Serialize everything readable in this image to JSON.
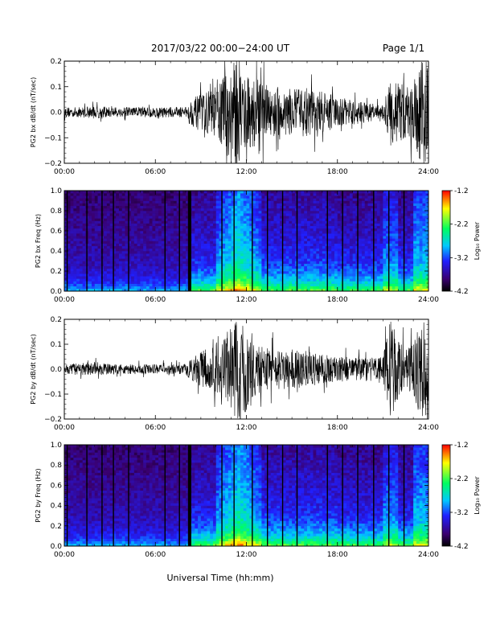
{
  "header": {
    "title": "2017/03/22  00:00−24:00 UT",
    "page": "Page 1/1"
  },
  "footer": {
    "xlabel": "Universal Time (hh:mm)"
  },
  "colors": {
    "trace": "#000000",
    "colormap": [
      "#000000",
      "#3a0070",
      "#2020ff",
      "#00c8ff",
      "#00ff60",
      "#ffff00",
      "#ff0000"
    ]
  },
  "chart_data": [
    {
      "type": "line",
      "ylabel": "PG2 bx dB/dt (nT/sec)",
      "xlim": [
        0,
        24
      ],
      "ylim": [
        -0.2,
        0.2
      ],
      "xticks": [
        "00:00",
        "06:00",
        "12:00",
        "18:00",
        "24:00"
      ],
      "yticks": [
        "0.2",
        "0.1",
        "0.0",
        "−0.1",
        "−0.2"
      ],
      "envelope": {
        "x": [
          0,
          1,
          2,
          3,
          4,
          5,
          6,
          7,
          8,
          8.25,
          9,
          10,
          10.5,
          11,
          11.5,
          12,
          13,
          14,
          15,
          16,
          17,
          18,
          19,
          20,
          20.5,
          21,
          21.5,
          22,
          22.5,
          23,
          23.5,
          24
        ],
        "amplitude": [
          0.02,
          0.02,
          0.025,
          0.02,
          0.02,
          0.02,
          0.02,
          0.02,
          0.02,
          0.05,
          0.07,
          0.1,
          0.15,
          0.2,
          0.2,
          0.15,
          0.12,
          0.1,
          0.09,
          0.1,
          0.08,
          0.06,
          0.05,
          0.04,
          0.03,
          0.03,
          0.12,
          0.15,
          0.1,
          0.12,
          0.2,
          0.2
        ]
      }
    },
    {
      "type": "heatmap",
      "ylabel": "PG2 bx Freq (Hz)",
      "xlim": [
        0,
        24
      ],
      "ylim": [
        0,
        1
      ],
      "xticks": [
        "00:00",
        "06:00",
        "12:00",
        "18:00",
        "24:00"
      ],
      "yticks": [
        "1.0",
        "0.8",
        "0.6",
        "0.4",
        "0.2",
        "0.0"
      ],
      "colorbar": {
        "label": "Log₁₀ Power",
        "range": [
          -4.2,
          -1.2
        ],
        "ticks": [
          "-1.2",
          "-2.2",
          "-3.2",
          "-4.2"
        ]
      },
      "gaps_hours": [
        0.15,
        1.45,
        2.45,
        3.2,
        4.2,
        6.6,
        7.55,
        8.15,
        8.25,
        10.35,
        11.15,
        12.35,
        13.35,
        14.35,
        15.3,
        17.3,
        18.3,
        19.3,
        20.35,
        21.35,
        22.35
      ]
    },
    {
      "type": "line",
      "ylabel": "PG2 by dB/dt (nT/sec)",
      "xlim": [
        0,
        24
      ],
      "ylim": [
        -0.2,
        0.2
      ],
      "xticks": [
        "00:00",
        "06:00",
        "12:00",
        "18:00",
        "24:00"
      ],
      "yticks": [
        "0.2",
        "0.1",
        "0.0",
        "−0.1",
        "−0.2"
      ],
      "envelope": {
        "x": [
          0,
          1,
          2,
          3,
          4,
          5,
          6,
          7,
          8,
          8.25,
          9,
          10,
          10.5,
          11,
          11.5,
          12,
          13,
          14,
          15,
          16,
          17,
          18,
          19,
          20,
          20.5,
          21,
          21.5,
          22,
          22.5,
          23,
          23.5,
          24
        ],
        "amplitude": [
          0.02,
          0.025,
          0.03,
          0.02,
          0.02,
          0.02,
          0.02,
          0.02,
          0.02,
          0.04,
          0.07,
          0.1,
          0.13,
          0.18,
          0.2,
          0.18,
          0.09,
          0.08,
          0.08,
          0.07,
          0.06,
          0.05,
          0.05,
          0.05,
          0.05,
          0.05,
          0.2,
          0.12,
          0.08,
          0.1,
          0.2,
          0.2
        ]
      }
    },
    {
      "type": "heatmap",
      "ylabel": "PG2 by Freq (Hz)",
      "xlim": [
        0,
        24
      ],
      "ylim": [
        0,
        1
      ],
      "xticks": [
        "00:00",
        "06:00",
        "12:00",
        "18:00",
        "24:00"
      ],
      "yticks": [
        "1.0",
        "0.8",
        "0.6",
        "0.4",
        "0.2",
        "0.0"
      ],
      "colorbar": {
        "label": "Log₁₀ Power",
        "range": [
          -4.2,
          -1.2
        ],
        "ticks": [
          "-1.2",
          "-2.2",
          "-3.2",
          "-4.2"
        ]
      },
      "gaps_hours": [
        0.15,
        1.45,
        2.45,
        3.2,
        4.2,
        6.6,
        7.55,
        8.15,
        8.25,
        10.35,
        11.15,
        12.35,
        13.35,
        14.35,
        15.3,
        17.3,
        18.3,
        19.3,
        20.35,
        21.35,
        22.35
      ]
    }
  ]
}
